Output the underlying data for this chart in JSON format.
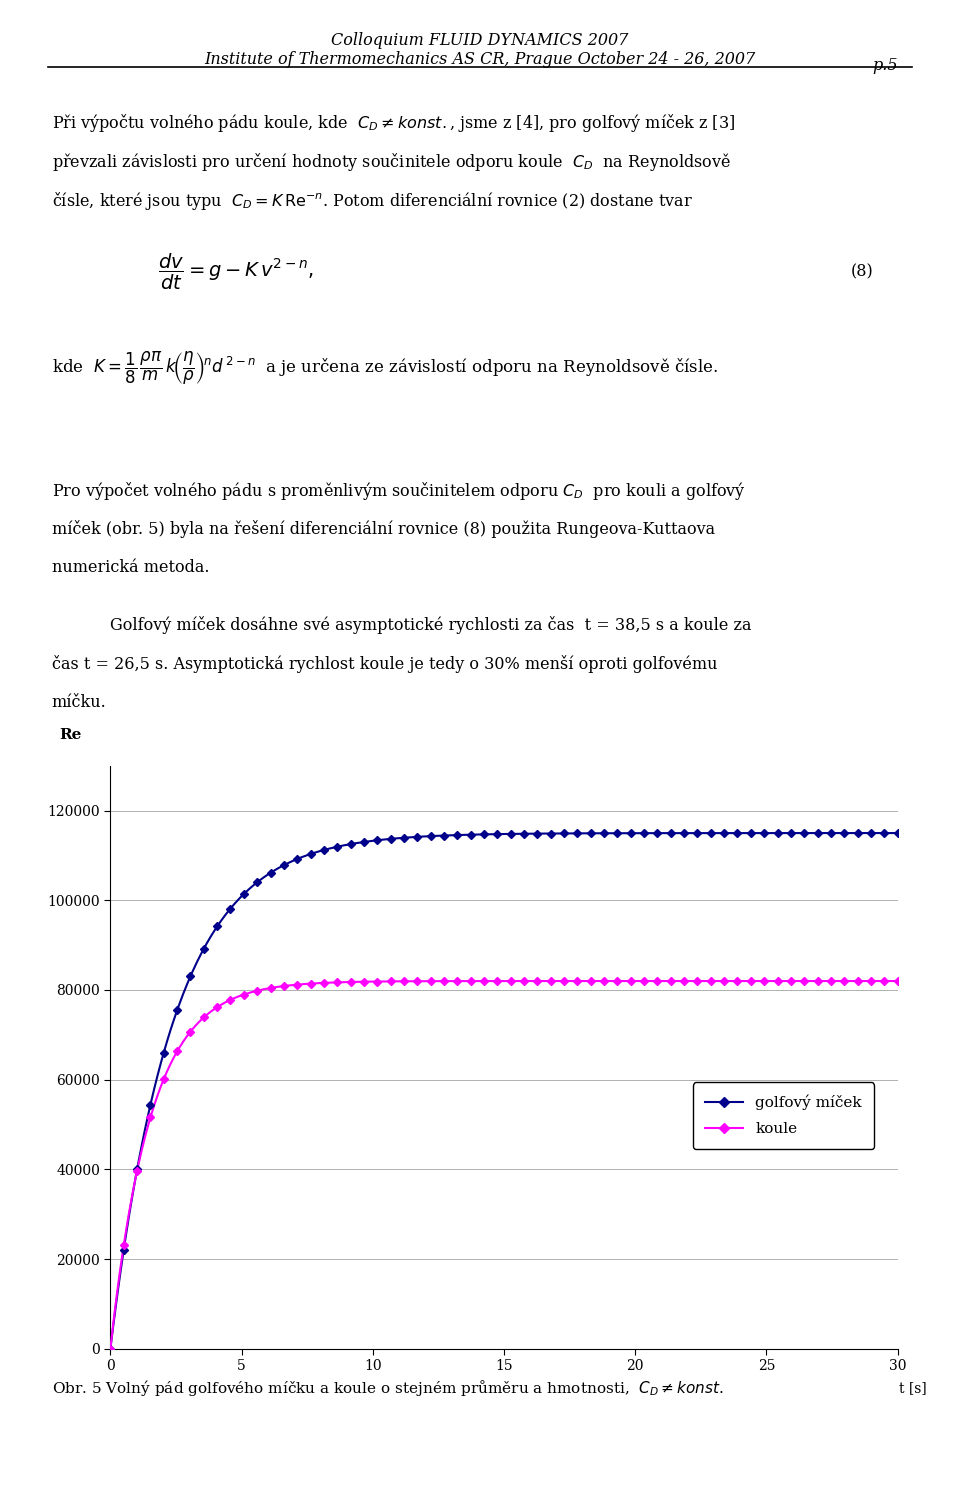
{
  "header_line1": "Colloquium FLUID DYNAMICS 2007",
  "header_line2": "Institute of Thermomechanics AS CR, Prague October 24 - 26, 2007",
  "page_number": "p.5",
  "bg_color": "#ffffff",
  "text_color": "#000000",
  "chart_ylabel": "Re",
  "chart_xlabel": "t [s]",
  "chart_xlim": [
    0,
    30
  ],
  "chart_ylim": [
    0,
    130000
  ],
  "chart_yticks": [
    0,
    20000,
    40000,
    60000,
    80000,
    100000,
    120000
  ],
  "chart_xticks": [
    0,
    5,
    10,
    15,
    20,
    25,
    30
  ],
  "series1_label": "golfový míček",
  "series1_color": "#00008B",
  "series2_label": "koule",
  "series2_color": "#FF00FF",
  "asymp1": 115000,
  "k1": 0.42,
  "asymp2": 82000,
  "k2": 0.65,
  "footer_text": "Obr. 5 Volný pád golfového míčku a koule o stejném průměru a hmotnosti,  $C_D \\neq konst.$"
}
